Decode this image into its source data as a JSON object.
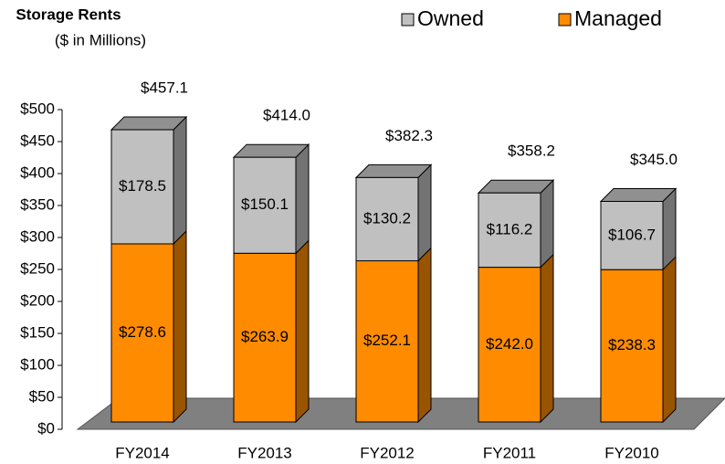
{
  "chart_data": {
    "type": "stacked-bar-3d",
    "title": "Storage Rents",
    "subtitle": "($ in Millions)",
    "categories": [
      "FY2014",
      "FY2013",
      "FY2012",
      "FY2011",
      "FY2010"
    ],
    "series": [
      {
        "name": "Managed",
        "color": "#ff8c00",
        "values": [
          278.6,
          263.9,
          252.1,
          242.0,
          238.3
        ],
        "value_labels": [
          "$278.6",
          "$263.9",
          "$252.1",
          "$242.0",
          "$238.3"
        ]
      },
      {
        "name": "Owned",
        "color": "#c0c0c0",
        "values": [
          178.5,
          150.1,
          130.2,
          116.2,
          106.7
        ],
        "value_labels": [
          "$178.5",
          "$150.1",
          "$130.2",
          "$116.2",
          "$106.7"
        ]
      }
    ],
    "totals": {
      "values": [
        457.1,
        414.0,
        382.3,
        358.2,
        345.0
      ],
      "value_labels": [
        "$457.1",
        "$414.0",
        "$382.3",
        "$358.2",
        "$345.0"
      ]
    },
    "ylim": [
      0,
      500
    ],
    "yticks": [
      {
        "value": 0,
        "label": "$0"
      },
      {
        "value": 50,
        "label": "$50"
      },
      {
        "value": 100,
        "label": "$100"
      },
      {
        "value": 150,
        "label": "$150"
      },
      {
        "value": 200,
        "label": "$200"
      },
      {
        "value": 250,
        "label": "$250"
      },
      {
        "value": 300,
        "label": "$300"
      },
      {
        "value": 350,
        "label": "$350"
      },
      {
        "value": 400,
        "label": "$400"
      },
      {
        "value": 450,
        "label": "$450"
      },
      {
        "value": 500,
        "label": "$500"
      }
    ]
  }
}
